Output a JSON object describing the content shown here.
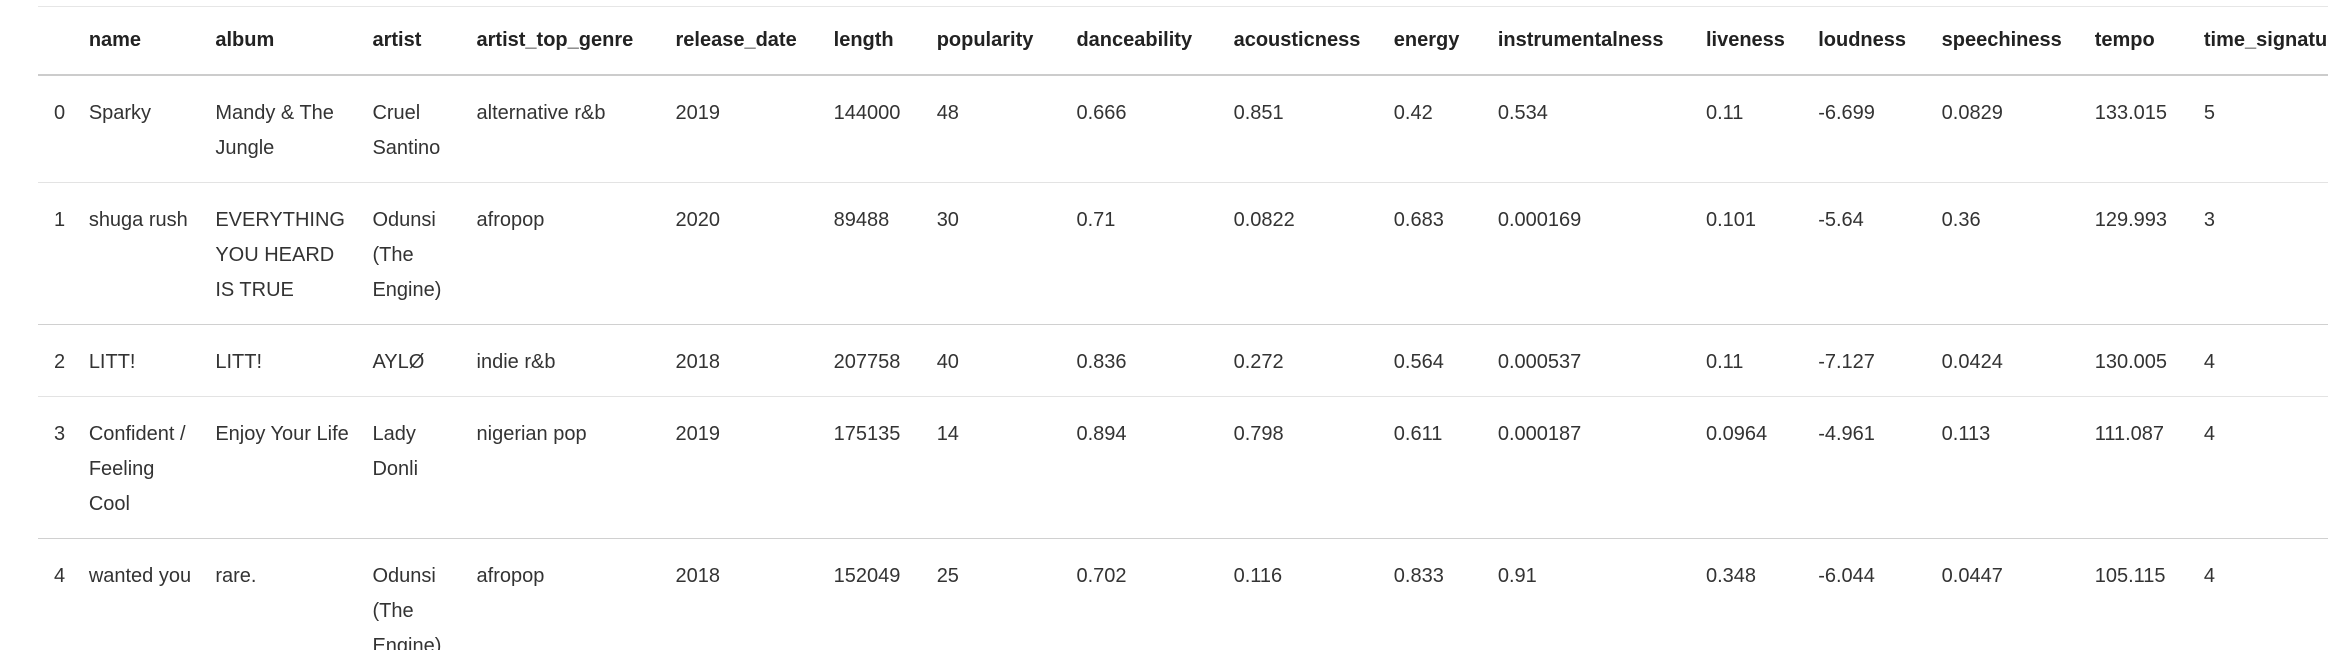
{
  "table": {
    "columns": [
      "",
      "name",
      "album",
      "artist",
      "artist_top_genre",
      "release_date",
      "length",
      "popularity",
      "danceability",
      "acousticness",
      "energy",
      "instrumentalness",
      "liveness",
      "loudness",
      "speechiness",
      "tempo",
      "time_signature"
    ],
    "rows": [
      [
        "0",
        "Sparky",
        "Mandy & The Jungle",
        "Cruel Santino",
        "alternative r&b",
        "2019",
        "144000",
        "48",
        "0.666",
        "0.851",
        "0.42",
        "0.534",
        "0.11",
        "-6.699",
        "0.0829",
        "133.015",
        "5"
      ],
      [
        "1",
        "shuga rush",
        "EVERYTHING YOU HEARD IS TRUE",
        "Odunsi (The Engine)",
        "afropop",
        "2020",
        "89488",
        "30",
        "0.71",
        "0.0822",
        "0.683",
        "0.000169",
        "0.101",
        "-5.64",
        "0.36",
        "129.993",
        "3"
      ],
      [
        "2",
        "LITT!",
        "LITT!",
        "AYLØ",
        "indie r&b",
        "2018",
        "207758",
        "40",
        "0.836",
        "0.272",
        "0.564",
        "0.000537",
        "0.11",
        "-7.127",
        "0.0424",
        "130.005",
        "4"
      ],
      [
        "3",
        "Confident / Feeling Cool",
        "Enjoy Your Life",
        "Lady Donli",
        "nigerian pop",
        "2019",
        "175135",
        "14",
        "0.894",
        "0.798",
        "0.611",
        "0.000187",
        "0.0964",
        "-4.961",
        "0.113",
        "111.087",
        "4"
      ],
      [
        "4",
        "wanted you",
        "rare.",
        "Odunsi (The Engine)",
        "afropop",
        "2018",
        "152049",
        "25",
        "0.702",
        "0.116",
        "0.833",
        "0.91",
        "0.348",
        "-6.044",
        "0.0447",
        "105.115",
        "4"
      ]
    ]
  }
}
